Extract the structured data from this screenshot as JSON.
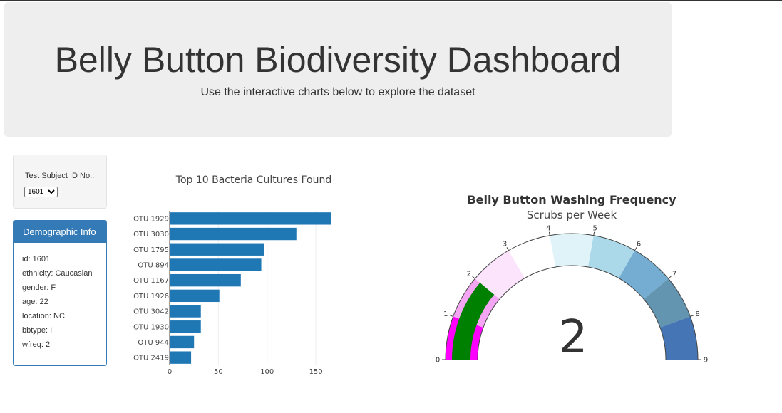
{
  "header": {
    "title": "Belly Button Biodiversity Dashboard",
    "subtitle": "Use the interactive charts below to explore the dataset"
  },
  "selector": {
    "label": "Test Subject ID No.:",
    "selected": "1601"
  },
  "demographics": {
    "heading": "Demographic Info",
    "rows": [
      "id: 1601",
      "ethnicity: Caucasian",
      "gender: F",
      "age: 22",
      "location: NC",
      "bbtype: I",
      "wfreq: 2"
    ]
  },
  "chart_data": [
    {
      "type": "bar",
      "orientation": "horizontal",
      "title": "Top 10 Bacteria Cultures Found",
      "categories": [
        "OTU 1929",
        "OTU 3030",
        "OTU 1795",
        "OTU 894",
        "OTU 1167",
        "OTU 1926",
        "OTU 3042",
        "OTU 1930",
        "OTU 944",
        "OTU 2419"
      ],
      "values": [
        166,
        130,
        97,
        94,
        73,
        51,
        32,
        32,
        25,
        22
      ],
      "xticks": [
        0,
        50,
        100,
        150
      ],
      "xlim": [
        0,
        166
      ],
      "color": "#1f77b4"
    },
    {
      "type": "gauge",
      "title": "Belly Button Washing Frequency",
      "subtitle": "Scrubs per Week",
      "value": 2,
      "range": [
        0,
        9
      ],
      "ticks": [
        "0",
        "1",
        "2",
        "3",
        "4",
        "5",
        "6",
        "7",
        "8",
        "9"
      ],
      "step_colors": [
        "#ff00ff",
        "#f4a6f4",
        "#fce4fc",
        "#ffffff",
        "#e0f3f8",
        "#abd9e9",
        "#74add1",
        "#6395b0",
        "#4575b4"
      ],
      "bar_color": "#008000"
    }
  ]
}
